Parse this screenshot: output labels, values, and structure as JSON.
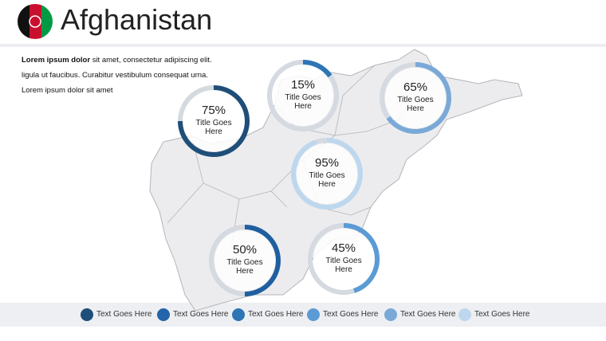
{
  "header": {
    "title": "Afghanistan"
  },
  "intro": {
    "bold": "Lorem ipsum dolor",
    "text": "sit amet, consectetur adipiscing elit. ligula ut faucibus. Curabitur vestibulum consequat urna. Lorem ipsum dolor sit amet"
  },
  "gauges": [
    {
      "value": 75,
      "value_label": "75%",
      "title": "Title Goes Here",
      "color": "#1f4e79"
    },
    {
      "value": 15,
      "value_label": "15%",
      "title": "Title Goes Here",
      "color": "#2e75b6"
    },
    {
      "value": 65,
      "value_label": "65%",
      "title": "Title Goes Here",
      "color": "#7aa9d8"
    },
    {
      "value": 95,
      "value_label": "95%",
      "title": "Title Goes Here",
      "color": "#bdd7ee"
    },
    {
      "value": 50,
      "value_label": "50%",
      "title": "Title Goes Here",
      "color": "#1f5fa0"
    },
    {
      "value": 45,
      "value_label": "45%",
      "title": "Title Goes Here",
      "color": "#5b9bd5"
    }
  ],
  "legend": [
    {
      "label": "Text Goes Here",
      "color": "#1f4e79"
    },
    {
      "label": "Text Goes Here",
      "color": "#2364aa"
    },
    {
      "label": "Text Goes Here",
      "color": "#2e75b6"
    },
    {
      "label": "Text Goes Here",
      "color": "#5b9bd5"
    },
    {
      "label": "Text Goes Here",
      "color": "#7aa9d8"
    },
    {
      "label": "Text Goes Here",
      "color": "#bdd7ee"
    }
  ]
}
